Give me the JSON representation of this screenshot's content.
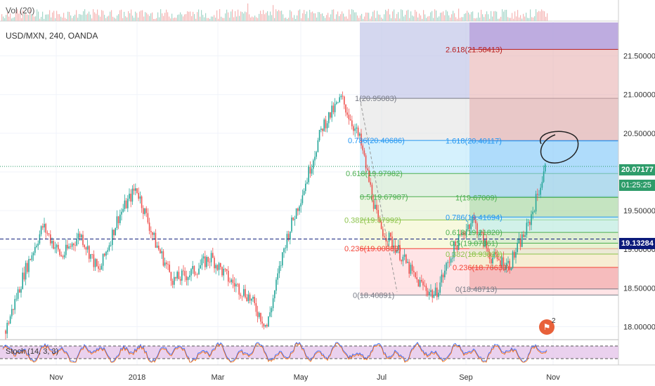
{
  "header": {
    "volume_label": "Vol (20)",
    "symbol_label": "USD/MXN, 240, OANDA",
    "stoch_label": "Stoch (14, 3, 3)"
  },
  "price_badges": {
    "last": "20.07177",
    "timer": "01:25:25",
    "line": "19.13284"
  },
  "alert": {
    "icon": "alert-icon",
    "count": "2"
  },
  "chart_data": {
    "type": "candlestick",
    "symbol": "USD/MXN",
    "timeframe": "240",
    "source": "OANDA",
    "y_axis": {
      "ticks": [
        "21.50000",
        "21.00000",
        "20.50000",
        "20.00000",
        "19.50000",
        "19.00000",
        "18.50000",
        "18.00000"
      ],
      "ylim": [
        17.85,
        21.95
      ]
    },
    "x_axis": {
      "ticks": [
        "Nov",
        "2018",
        "Mar",
        "May",
        "Jul",
        "Sep",
        "Nov"
      ]
    },
    "price_path": [
      [
        "Oct 2017",
        17.95
      ],
      [
        "Oct 2017",
        18.7
      ],
      [
        "Nov 2017",
        19.3
      ],
      [
        "Nov 2017",
        18.9
      ],
      [
        "Dec 2017",
        19.2
      ],
      [
        "Dec 2017",
        18.7
      ],
      [
        "Dec 2017",
        19.4
      ],
      [
        "Jan 2018",
        19.8
      ],
      [
        "Jan 2018",
        19.1
      ],
      [
        "Feb 2018",
        18.6
      ],
      [
        "Feb 2018",
        18.7
      ],
      [
        "Mar 2018",
        18.9
      ],
      [
        "Mar 2018",
        18.6
      ],
      [
        "Apr 2018",
        18.4
      ],
      [
        "Apr 2018",
        18.0
      ],
      [
        "May 2018",
        19.1
      ],
      [
        "May 2018",
        19.8
      ],
      [
        "Jun 2018",
        20.6
      ],
      [
        "Jun 2018",
        20.95
      ],
      [
        "Jun 2018",
        20.4
      ],
      [
        "Jul 2018",
        19.3
      ],
      [
        "Jul 2018",
        19.0
      ],
      [
        "Aug 2018",
        18.6
      ],
      [
        "Aug 2018",
        18.4
      ],
      [
        "Aug 2018",
        19.0
      ],
      [
        "Sep 2018",
        19.4
      ],
      [
        "Sep 2018",
        18.9
      ],
      [
        "Oct 2018",
        18.8
      ],
      [
        "Oct 2018",
        19.3
      ],
      [
        "Oct 2018",
        20.1
      ]
    ],
    "price_lines": [
      {
        "name": "last",
        "value": 20.07177,
        "style": "dotted",
        "color": "#2e9c6a"
      },
      {
        "name": "horizontal",
        "value": 19.13284,
        "style": "dashed",
        "color": "#0b1a7a"
      }
    ],
    "fib_retracement": {
      "levels": [
        {
          "label": "1(20.95083)",
          "value": 20.95083,
          "color": "#787b86"
        },
        {
          "label": "0.786(20.40686)",
          "value": 20.40686,
          "color": "#2196f3"
        },
        {
          "label": "0.618(19.97982)",
          "value": 19.97982,
          "color": "#4caf50"
        },
        {
          "label": "0.5(19.67987)",
          "value": 19.67987,
          "color": "#4caf50"
        },
        {
          "label": "0.382(19.37992)",
          "value": 19.37992,
          "color": "#8bc34a"
        },
        {
          "label": "0.236(19.00883)",
          "value": 19.00883,
          "color": "#f44336"
        },
        {
          "label": "0(18.40891)",
          "value": 18.40891,
          "color": "#787b86"
        }
      ]
    },
    "fib_extension": {
      "levels": [
        {
          "label": "2.618(21.58413)",
          "value": 21.58413,
          "color": "#b71c1c"
        },
        {
          "label": "1.618(20.40117)",
          "value": 20.40117,
          "color": "#2196f3"
        },
        {
          "label": "1(19.67009)",
          "value": 19.67009,
          "color": "#4caf50"
        },
        {
          "label": "0.786(19.41694)",
          "value": 19.41694,
          "color": "#2196f3"
        },
        {
          "label": "0.618(19.21820)",
          "value": 19.2182,
          "color": "#4caf50"
        },
        {
          "label": "0.5(19.07861)",
          "value": 19.07861,
          "color": "#4caf50"
        },
        {
          "label": "0.382(18.93823)",
          "value": 18.93823,
          "color": "#8bc34a"
        },
        {
          "label": "0.236(18.76633)",
          "value": 18.76633,
          "color": "#f44336"
        },
        {
          "label": "0(18.48713)",
          "value": 18.48713,
          "color": "#787b86"
        }
      ]
    },
    "stochastic": {
      "params": "14, 3, 3",
      "bands": [
        80,
        20
      ],
      "color": "#2962ff",
      "band_fill": "#e1bee7"
    },
    "colors": {
      "up": "#26a69a",
      "down": "#ef5350",
      "grid": "#f0f3fa"
    }
  }
}
